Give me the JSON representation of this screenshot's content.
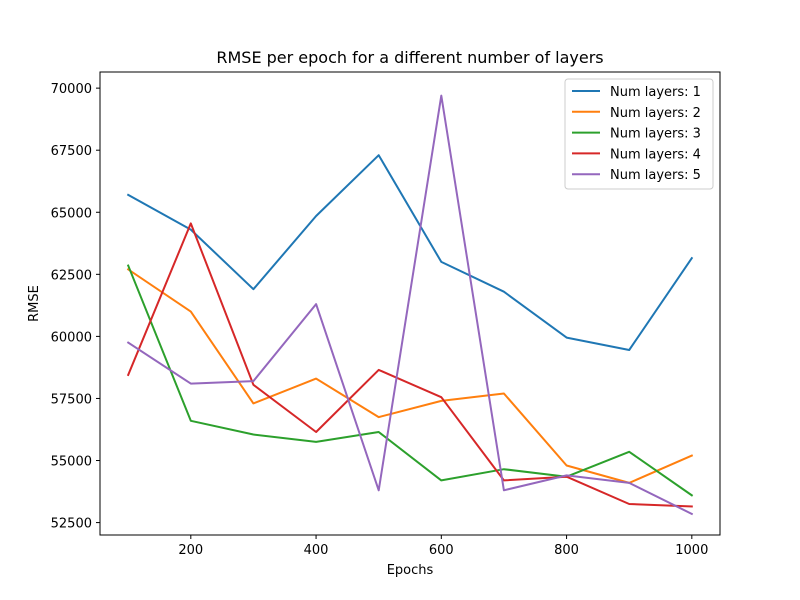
{
  "chart_data": {
    "type": "line",
    "title": "RMSE per epoch for a different number of layers",
    "xlabel": "Epochs",
    "ylabel": "RMSE",
    "xlim": [
      55,
      1045
    ],
    "ylim": [
      52000,
      70650
    ],
    "xticks": [
      200,
      400,
      600,
      800,
      1000
    ],
    "yticks": [
      52500,
      55000,
      57500,
      60000,
      62500,
      65000,
      67500,
      70000
    ],
    "grid": false,
    "legend_position": "top-right",
    "x": [
      100,
      200,
      300,
      400,
      500,
      600,
      700,
      800,
      900,
      1000
    ],
    "series": [
      {
        "name": "Num layers: 1",
        "color": "#1f77b4",
        "values": [
          65700,
          64300,
          61900,
          64850,
          67300,
          63000,
          61800,
          59950,
          59450,
          63150
        ]
      },
      {
        "name": "Num layers: 2",
        "color": "#ff7f0e",
        "values": [
          62700,
          61000,
          57300,
          58300,
          56750,
          57400,
          57700,
          54800,
          54100,
          55200
        ]
      },
      {
        "name": "Num layers: 3",
        "color": "#2ca02c",
        "values": [
          62850,
          56600,
          56050,
          55750,
          56150,
          54200,
          54650,
          54350,
          55350,
          53600
        ]
      },
      {
        "name": "Num layers: 4",
        "color": "#d62728",
        "values": [
          58450,
          64550,
          58050,
          56150,
          58650,
          57550,
          54200,
          54350,
          53250,
          53150
        ]
      },
      {
        "name": "Num layers: 5",
        "color": "#9467bd",
        "values": [
          59750,
          58100,
          58200,
          61300,
          53800,
          69700,
          53800,
          54400,
          54100,
          52850
        ]
      }
    ]
  }
}
